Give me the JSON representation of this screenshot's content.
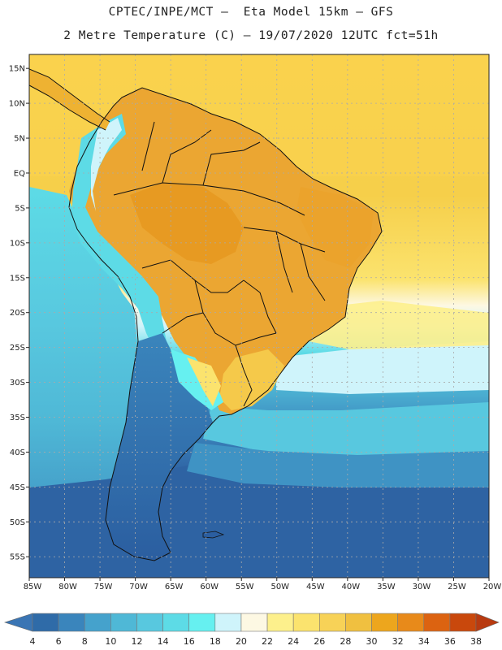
{
  "header": {
    "line1": "CPTEC/INPE/MCT –  Eta Model 15km – GFS",
    "line2": "2 Metre Temperature (C) – 19/07/2020 12UTC fct=51h"
  },
  "map": {
    "lon_range": [
      -85,
      -20
    ],
    "lat_range": [
      -58,
      17
    ],
    "lat_ticks": [
      "15N",
      "10N",
      "5N",
      "EQ",
      "5S",
      "10S",
      "15S",
      "20S",
      "25S",
      "30S",
      "35S",
      "40S",
      "45S",
      "50S",
      "55S"
    ],
    "lon_ticks": [
      "85W",
      "80W",
      "75W",
      "70W",
      "65W",
      "60W",
      "55W",
      "50W",
      "45W",
      "40W",
      "35W",
      "30W",
      "25W",
      "20W"
    ]
  },
  "colorbar": {
    "labels": [
      "4",
      "6",
      "8",
      "10",
      "12",
      "14",
      "16",
      "18",
      "20",
      "22",
      "24",
      "26",
      "28",
      "30",
      "32",
      "34",
      "36",
      "38"
    ],
    "colors": [
      "#2f6ba8",
      "#3a85bc",
      "#45a2cc",
      "#4fb8d6",
      "#58c8df",
      "#5ddbe6",
      "#66f0f0",
      "#cff4fb",
      "#fdf8e3",
      "#fdf08c",
      "#fbe36e",
      "#f7d257",
      "#f0c040",
      "#eda61d",
      "#e88a1a",
      "#dc6311",
      "#c9480c"
    ],
    "under_color": "#3a75b4",
    "over_color": "#b83a10"
  }
}
